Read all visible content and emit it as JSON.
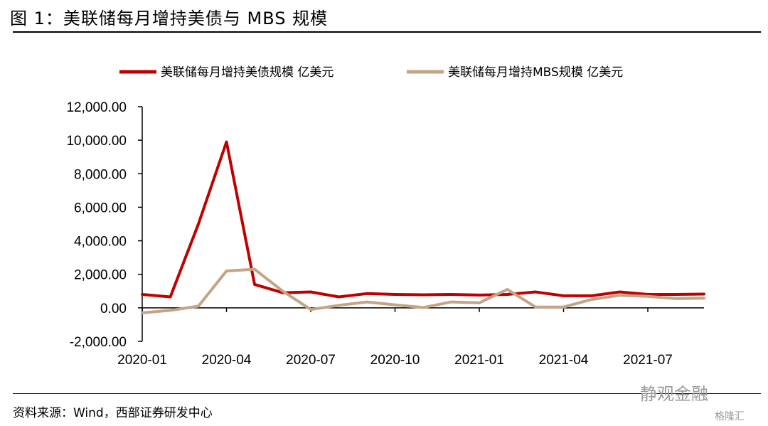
{
  "figure": {
    "title": "图 1：美联储每月增持美债与 MBS 规模",
    "source": "资料来源：Wind，西部证券研发中心",
    "watermark": "静观金融",
    "watermark2": "格隆汇"
  },
  "chart_data": {
    "type": "line",
    "x": [
      "2020-01",
      "2020-02",
      "2020-03",
      "2020-04",
      "2020-05",
      "2020-06",
      "2020-07",
      "2020-08",
      "2020-09",
      "2020-10",
      "2020-11",
      "2020-12",
      "2021-01",
      "2021-02",
      "2021-03",
      "2021-04",
      "2021-05",
      "2021-06",
      "2021-07",
      "2021-08",
      "2021-09"
    ],
    "x_tick_labels": [
      "2020-01",
      "2020-04",
      "2020-07",
      "2020-10",
      "2021-01",
      "2021-04",
      "2021-07"
    ],
    "x_tick_index": [
      0,
      3,
      6,
      9,
      12,
      15,
      18
    ],
    "ylim": [
      -2000,
      12000
    ],
    "y_ticks": [
      12000,
      10000,
      8000,
      6000,
      4000,
      2000,
      0,
      -2000
    ],
    "y_tick_labels": [
      "12,000.00",
      "10,000.00",
      "8,000.00",
      "6,000.00",
      "4,000.00",
      "2,000.00",
      "0.00",
      "-2,000.00"
    ],
    "legend_position": "top",
    "grid": false,
    "series": [
      {
        "name": "美联储每月增持美债规模 亿美元",
        "color": "#c00000",
        "values": [
          800,
          650,
          5000,
          9900,
          1400,
          900,
          950,
          650,
          850,
          800,
          780,
          800,
          760,
          800,
          950,
          720,
          720,
          950,
          800,
          800,
          820
        ]
      },
      {
        "name": "美联储每月增持MBS规模 亿美元",
        "color": "#c4a484",
        "values": [
          -300,
          -150,
          100,
          2200,
          2300,
          1000,
          -100,
          150,
          350,
          180,
          20,
          350,
          300,
          1100,
          50,
          50,
          500,
          750,
          680,
          550,
          580
        ]
      }
    ]
  }
}
